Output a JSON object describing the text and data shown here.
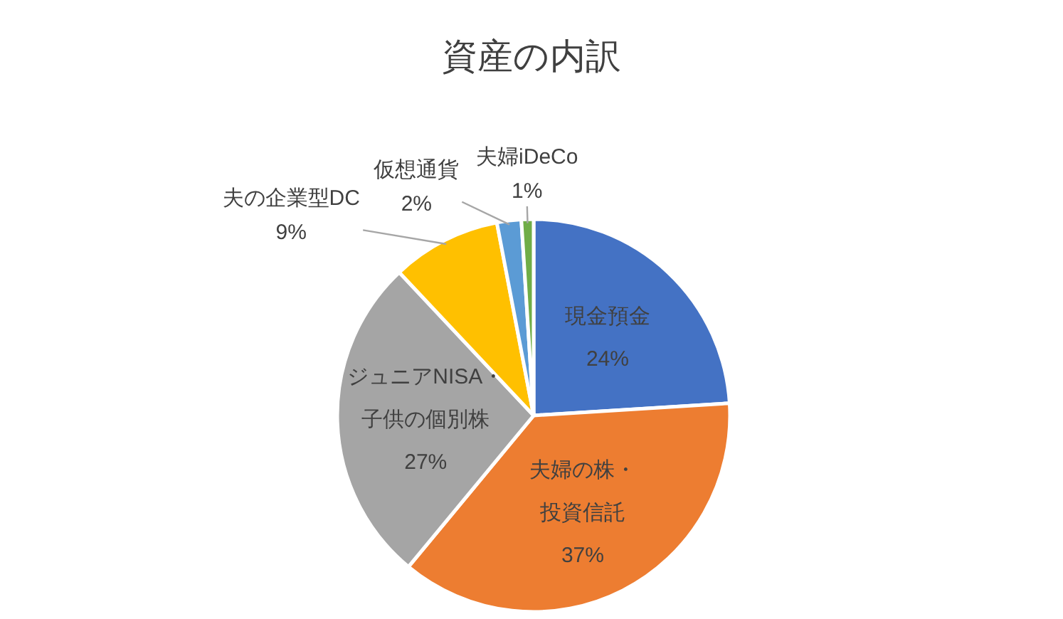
{
  "chart_data": {
    "type": "pie",
    "title": "資産の内訳",
    "categories": [
      "現金預金",
      "夫婦の株・投資信託",
      "ジュニアNISA・子供の個別株",
      "夫の企業型DC",
      "仮想通貨",
      "夫婦iDeCo"
    ],
    "values": [
      24,
      37,
      27,
      9,
      2,
      1
    ],
    "value_labels": [
      "24%",
      "37%",
      "27%",
      "9%",
      "2%",
      "1%"
    ],
    "colors": [
      "#4472c4",
      "#ed7d31",
      "#a5a5a5",
      "#ffc000",
      "#5b9bd5",
      "#70ad47"
    ]
  }
}
